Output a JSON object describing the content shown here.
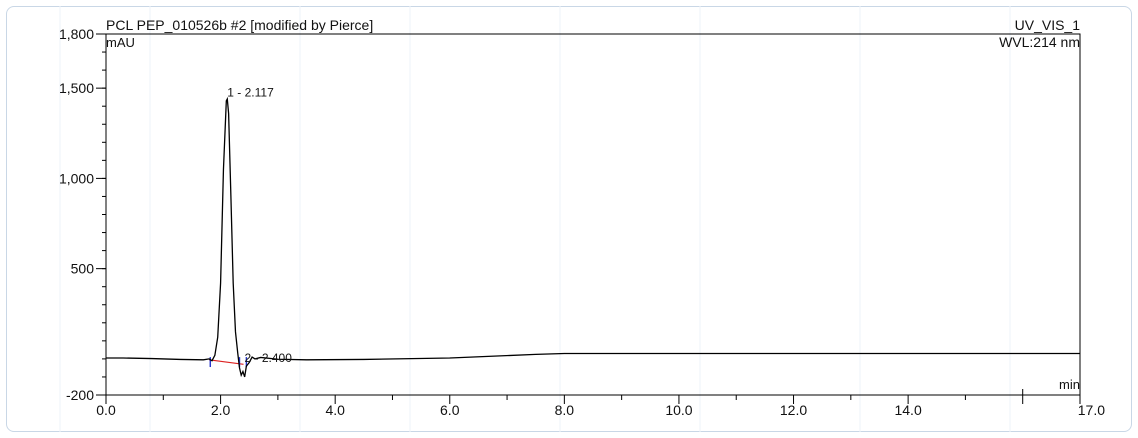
{
  "chart_data": {
    "type": "line",
    "title": "PCL PEP_010526b #2 [modified by Pierce]",
    "channel": "UV_VIS_1",
    "wavelength": "WVL:214 nm",
    "ylabel": "mAU",
    "xlabel": "min",
    "xlim": [
      0,
      17
    ],
    "ylim": [
      -200,
      1800
    ],
    "x_ticks": [
      {
        "value": 0,
        "label": "0.0"
      },
      {
        "value": 2,
        "label": "2.0"
      },
      {
        "value": 4,
        "label": "4.0"
      },
      {
        "value": 6,
        "label": "6.0"
      },
      {
        "value": 8,
        "label": "8.0"
      },
      {
        "value": 10,
        "label": "10.0"
      },
      {
        "value": 12,
        "label": "12.0"
      },
      {
        "value": 14,
        "label": "14.0"
      },
      {
        "value": 17,
        "label": "17.0"
      }
    ],
    "y_ticks": [
      {
        "value": -200,
        "label": "-200"
      },
      {
        "value": 500,
        "label": "500"
      },
      {
        "value": 1000,
        "label": "1,000"
      },
      {
        "value": 1500,
        "label": "1,500"
      },
      {
        "value": 1800,
        "label": "1,800"
      }
    ],
    "peaks": [
      {
        "label": "1 - 2.117",
        "x": 2.117,
        "y": 1420
      },
      {
        "label": "2 - 2.400",
        "x": 2.4,
        "y": 5
      }
    ],
    "series": [
      {
        "color": "#000000",
        "points": [
          [
            0.0,
            5
          ],
          [
            0.3,
            5
          ],
          [
            0.8,
            2
          ],
          [
            1.3,
            -3
          ],
          [
            1.7,
            -5
          ],
          [
            1.8,
            0
          ],
          [
            1.85,
            -10
          ],
          [
            1.9,
            20
          ],
          [
            1.95,
            120
          ],
          [
            2.0,
            420
          ],
          [
            2.05,
            1050
          ],
          [
            2.1,
            1430
          ],
          [
            2.117,
            1440
          ],
          [
            2.14,
            1360
          ],
          [
            2.18,
            900
          ],
          [
            2.22,
            420
          ],
          [
            2.26,
            150
          ],
          [
            2.3,
            30
          ],
          [
            2.33,
            -50
          ],
          [
            2.36,
            -90
          ],
          [
            2.39,
            -70
          ],
          [
            2.42,
            -100
          ],
          [
            2.45,
            -40
          ],
          [
            2.5,
            -20
          ],
          [
            2.55,
            10
          ],
          [
            2.6,
            0
          ],
          [
            2.7,
            8
          ],
          [
            3.0,
            -2
          ],
          [
            3.5,
            -5
          ],
          [
            4.5,
            -3
          ],
          [
            6.0,
            5
          ],
          [
            7.5,
            25
          ],
          [
            8.0,
            30
          ],
          [
            17.0,
            30
          ]
        ]
      }
    ],
    "baseline_marks": {
      "red_line": [
        [
          1.8,
          -5
        ],
        [
          2.4,
          -30
        ]
      ],
      "blue_ticks_x": [
        1.82,
        2.33,
        2.45
      ]
    },
    "grid": false
  }
}
